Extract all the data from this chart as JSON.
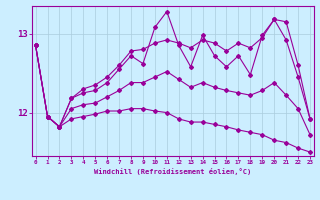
{
  "xlabel": "Windchill (Refroidissement éolien,°C)",
  "bg_color": "#cceeff",
  "line_color": "#990099",
  "grid_color": "#aaccdd",
  "hours": [
    0,
    1,
    2,
    3,
    4,
    5,
    6,
    7,
    8,
    9,
    10,
    11,
    12,
    13,
    14,
    15,
    16,
    17,
    18,
    19,
    20,
    21,
    22,
    23
  ],
  "instant_vals": [
    12.85,
    11.95,
    11.82,
    12.18,
    12.25,
    12.28,
    12.38,
    12.55,
    12.72,
    12.62,
    13.08,
    13.28,
    12.85,
    12.58,
    12.98,
    12.72,
    12.58,
    12.72,
    12.48,
    12.98,
    13.18,
    12.92,
    12.45,
    11.92
  ],
  "max_vals": [
    12.85,
    11.95,
    11.82,
    12.18,
    12.3,
    12.35,
    12.45,
    12.6,
    12.78,
    12.8,
    12.88,
    12.92,
    12.88,
    12.82,
    12.92,
    12.88,
    12.78,
    12.88,
    12.82,
    12.95,
    13.18,
    13.15,
    12.6,
    11.92
  ],
  "avg_vals": [
    12.85,
    11.95,
    11.82,
    12.05,
    12.1,
    12.12,
    12.2,
    12.28,
    12.38,
    12.38,
    12.45,
    12.52,
    12.42,
    12.32,
    12.38,
    12.32,
    12.28,
    12.25,
    12.22,
    12.28,
    12.38,
    12.22,
    12.05,
    11.72
  ],
  "min_vals": [
    12.85,
    11.95,
    11.82,
    11.92,
    11.95,
    11.98,
    12.02,
    12.02,
    12.05,
    12.05,
    12.02,
    12.0,
    11.92,
    11.88,
    11.88,
    11.85,
    11.82,
    11.78,
    11.75,
    11.72,
    11.65,
    11.62,
    11.55,
    11.5
  ],
  "ylim": [
    11.45,
    13.35
  ],
  "yticks": [
    12,
    13
  ],
  "xlim": [
    -0.3,
    23.3
  ]
}
